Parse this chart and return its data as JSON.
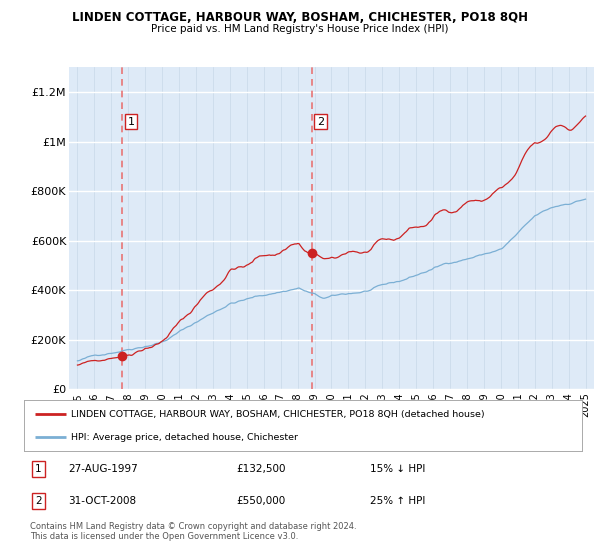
{
  "title": "LINDEN COTTAGE, HARBOUR WAY, BOSHAM, CHICHESTER, PO18 8QH",
  "subtitle": "Price paid vs. HM Land Registry's House Price Index (HPI)",
  "legend_line1": "LINDEN COTTAGE, HARBOUR WAY, BOSHAM, CHICHESTER, PO18 8QH (detached house)",
  "legend_line2": "HPI: Average price, detached house, Chichester",
  "footnote": "Contains HM Land Registry data © Crown copyright and database right 2024.\nThis data is licensed under the Open Government Licence v3.0.",
  "sale1_label": "1",
  "sale1_date": "27-AUG-1997",
  "sale1_price": "£132,500",
  "sale1_hpi": "15% ↓ HPI",
  "sale1_year": 1997.65,
  "sale1_value": 132500,
  "sale2_label": "2",
  "sale2_date": "31-OCT-2008",
  "sale2_price": "£550,000",
  "sale2_hpi": "25% ↑ HPI",
  "sale2_year": 2008.83,
  "sale2_value": 550000,
  "hpi_color": "#7bafd4",
  "price_color": "#cc2222",
  "dashed_color": "#e87575",
  "bg_color": "#deeaf7",
  "ylim": [
    0,
    1300000
  ],
  "xlim_start": 1994.5,
  "xlim_end": 2025.5,
  "yticks": [
    0,
    200000,
    400000,
    600000,
    800000,
    1000000,
    1200000
  ],
  "ytick_labels": [
    "£0",
    "£200K",
    "£400K",
    "£600K",
    "£800K",
    "£1M",
    "£1.2M"
  ],
  "xticks": [
    1995,
    1996,
    1997,
    1998,
    1999,
    2000,
    2001,
    2002,
    2003,
    2004,
    2005,
    2006,
    2007,
    2008,
    2009,
    2010,
    2011,
    2012,
    2013,
    2014,
    2015,
    2016,
    2017,
    2018,
    2019,
    2020,
    2021,
    2022,
    2023,
    2024,
    2025
  ]
}
